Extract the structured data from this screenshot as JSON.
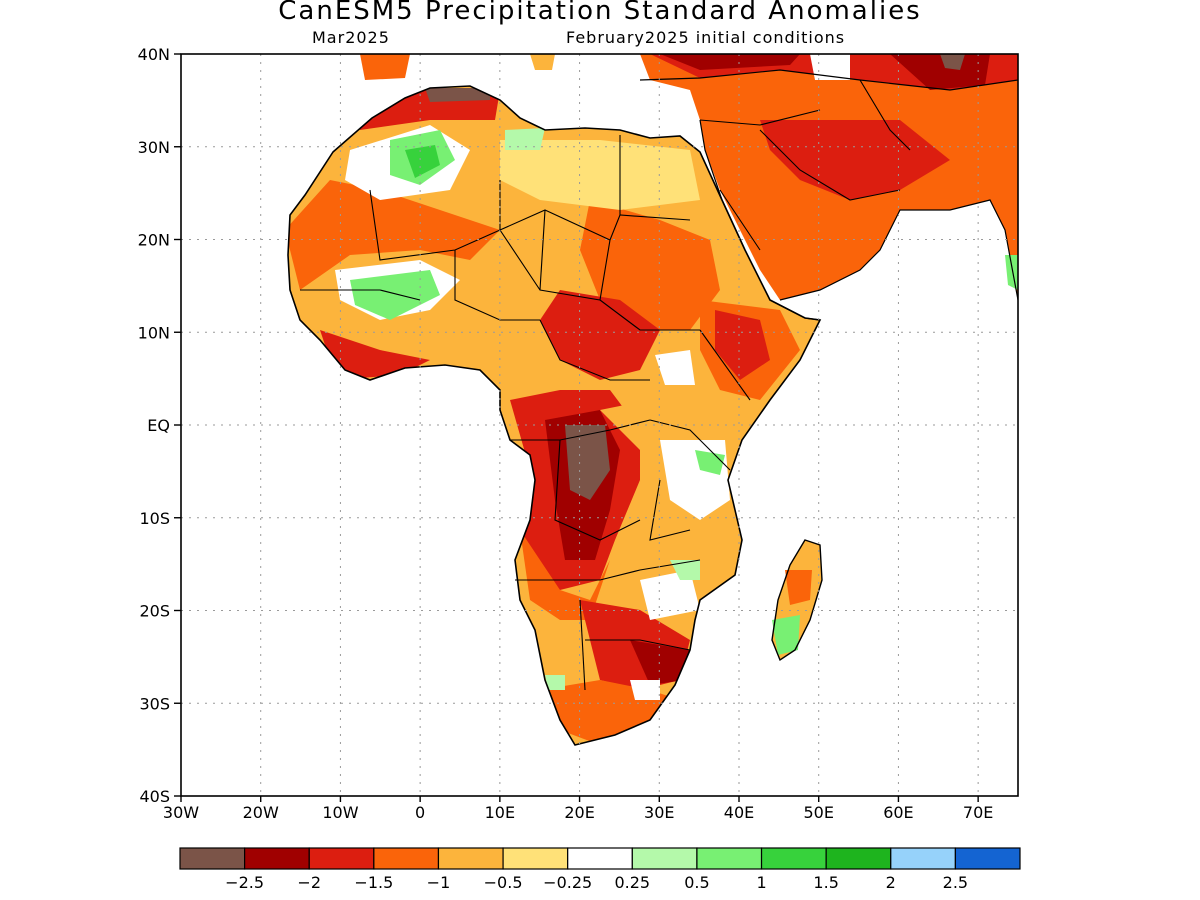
{
  "header": {
    "title": "CanESM5 Precipitation Standard Anomalies",
    "valid_month": "Mar2025",
    "initial_conditions": "February2025 initial conditions"
  },
  "map": {
    "lon_range": [
      -30,
      75
    ],
    "lat_range": [
      -40,
      40
    ],
    "lat_ticks": [
      {
        "value": 40,
        "label": "40N"
      },
      {
        "value": 30,
        "label": "30N"
      },
      {
        "value": 20,
        "label": "20N"
      },
      {
        "value": 10,
        "label": "10N"
      },
      {
        "value": 0,
        "label": "EQ"
      },
      {
        "value": -10,
        "label": "10S"
      },
      {
        "value": -20,
        "label": "20S"
      },
      {
        "value": -30,
        "label": "30S"
      },
      {
        "value": -40,
        "label": "40S"
      }
    ],
    "lon_ticks": [
      {
        "value": -30,
        "label": "30W"
      },
      {
        "value": -20,
        "label": "20W"
      },
      {
        "value": -10,
        "label": "10W"
      },
      {
        "value": 0,
        "label": "0"
      },
      {
        "value": 10,
        "label": "10E"
      },
      {
        "value": 20,
        "label": "20E"
      },
      {
        "value": 30,
        "label": "30E"
      },
      {
        "value": 40,
        "label": "40E"
      },
      {
        "value": 50,
        "label": "50E"
      },
      {
        "value": 60,
        "label": "60E"
      },
      {
        "value": 70,
        "label": "70E"
      }
    ]
  },
  "colorbar": {
    "colors": [
      "#7b5448",
      "#a00000",
      "#dc1e10",
      "#fa640a",
      "#fcb43c",
      "#ffe178",
      "#ffffff",
      "#b4f9aa",
      "#78f073",
      "#37d23c",
      "#1eb41e",
      "#96d2fa",
      "#1464d2"
    ],
    "labels": [
      "−2.5",
      "−2",
      "−1.5",
      "−1",
      "−0.5",
      "−0.25",
      "0.25",
      "0.5",
      "1",
      "1.5",
      "2",
      "2.5"
    ]
  },
  "fills": {
    "ocean": "#ffffff",
    "land_base": "#fcb43c"
  }
}
